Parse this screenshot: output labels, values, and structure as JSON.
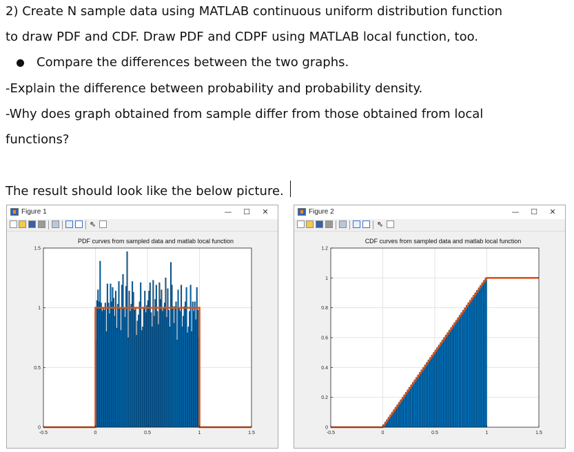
{
  "document": {
    "line1": "2) Create N sample data using MATLAB continuous uniform distribution function",
    "line2": "to draw PDF and CDF. Draw PDF and CDPF using MATLAB local function, too.",
    "bullet": "Compare the differences between the two graphs.",
    "line4": "-Explain the difference between probability and probability density.",
    "line5": "-Why does graph obtained from sample differ from those obtained from local",
    "line6": "functions?",
    "line7": "The result should look like the below picture."
  },
  "windows": [
    {
      "title": "Figure 1",
      "minimize": "—",
      "maximize": "☐",
      "close": "✕"
    },
    {
      "title": "Figure 2",
      "minimize": "—",
      "maximize": "☐",
      "close": "✕"
    }
  ],
  "toolbar_icons": [
    "new-figure-icon",
    "open-icon",
    "save-icon",
    "print-icon",
    "print-preview-icon",
    "colorbar-icon",
    "legend-icon",
    "pointer-icon",
    "plot-tools-icon"
  ],
  "colors": {
    "bars": "#0072bd",
    "line": "#d95319",
    "axes_bg": "#ffffff",
    "figure_bg": "#f0f0f0"
  },
  "chart_data": [
    {
      "type": "bar",
      "title": "PDF curves from sampled data and matlab local function",
      "xlim": [
        -0.5,
        1.5
      ],
      "ylim": [
        0,
        1.5
      ],
      "xticks": [
        "-0.5",
        "0",
        "0.5",
        "1",
        "1.5"
      ],
      "yticks": [
        "0",
        "0.5",
        "1",
        "1.5"
      ],
      "grid": true,
      "bin_range": [
        0,
        1
      ],
      "histogram_values": [
        0.73,
        1.06,
        1.15,
        1.05,
        1.39,
        1.04,
        0.97,
        0.99,
        0.98,
        1.04,
        0.8,
        1.2,
        1.04,
        0.95,
        1.2,
        1.05,
        1.17,
        1.08,
        0.93,
        1.14,
        0.83,
        1.03,
        1.22,
        1.0,
        0.81,
        1.19,
        1.28,
        1.0,
        0.92,
        1.18,
        1.47,
        0.75,
        1.14,
        0.97,
        1.03,
        1.22,
        1.13,
        0.98,
        0.99,
        0.77,
        0.89,
        0.94,
        1.05,
        1.21,
        0.81,
        0.84,
        1.0,
        1.14,
        0.96,
        1.02,
        1.06,
        1.14,
        1.21,
        0.96,
        0.84,
        1.23,
        0.93,
        1.07,
        1.19,
        0.97,
        0.86,
        1.21,
        1.07,
        1.15,
        0.97,
        0.99,
        1.04,
        1.25,
        0.92,
        1.16,
        0.98,
        0.84,
        1.38,
        1.19,
        1.01,
        0.87,
        1.01,
        1.05,
        0.73,
        1.15,
        1.0,
        0.97,
        1.19,
        0.84,
        0.93,
        1.01,
        1.05,
        1.17,
        0.79,
        0.84,
        0.97,
        1.19,
        0.8,
        1.05,
        0.97,
        1.05,
        0.9,
        1.17,
        0.98,
        0.75
      ],
      "line": {
        "x": [
          -0.5,
          0,
          0,
          1,
          1,
          1.5
        ],
        "y": [
          0,
          0,
          1,
          1,
          0,
          0
        ]
      }
    },
    {
      "type": "bar",
      "title": "CDF curves from sampled data and matlab local function",
      "xlim": [
        -0.5,
        1.5
      ],
      "ylim": [
        0,
        1.2
      ],
      "xticks": [
        "-0.5",
        "0",
        "0.5",
        "1",
        "1.5"
      ],
      "yticks": [
        "0",
        "0.2",
        "0.4",
        "0.6",
        "0.8",
        "1",
        "1.2"
      ],
      "grid": true,
      "bin_range": [
        0,
        1
      ],
      "bins": 60,
      "histogram_values": "cumulative, rising linearly from 0 at x=0 to 1 at x=1",
      "line": {
        "x": [
          -0.5,
          0,
          1,
          1.5
        ],
        "y": [
          0,
          0,
          1,
          1
        ]
      }
    }
  ]
}
